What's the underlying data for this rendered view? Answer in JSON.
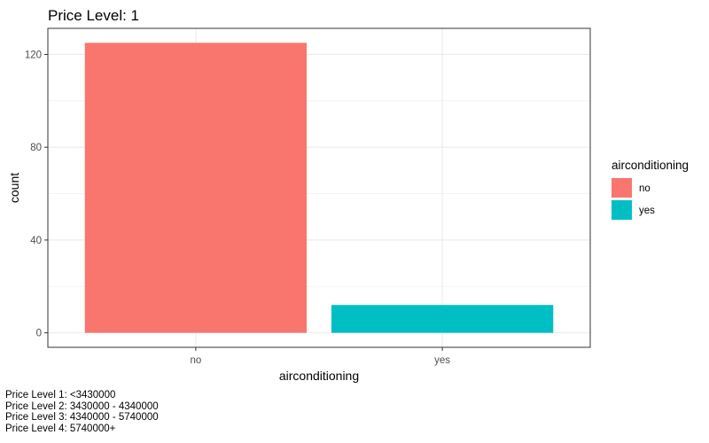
{
  "chart_data": {
    "type": "bar",
    "title": "Price Level: 1",
    "xlabel": "airconditioning",
    "ylabel": "count",
    "categories": [
      "no",
      "yes"
    ],
    "values": [
      125,
      12
    ],
    "colors": [
      "#F8766D",
      "#00BFC4"
    ],
    "ylim": [
      -6.25,
      131.25
    ],
    "yticks": [
      0,
      40,
      80,
      120
    ],
    "grid": true,
    "legend": {
      "title": "airconditioning",
      "position": "right",
      "entries": [
        "no",
        "yes"
      ]
    }
  },
  "caption": [
    "Price Level 1: <3430000",
    "Price Level 2: 3430000 - 4340000",
    "Price Level 3: 4340000 - 5740000",
    "Price Level 4: 5740000+"
  ]
}
